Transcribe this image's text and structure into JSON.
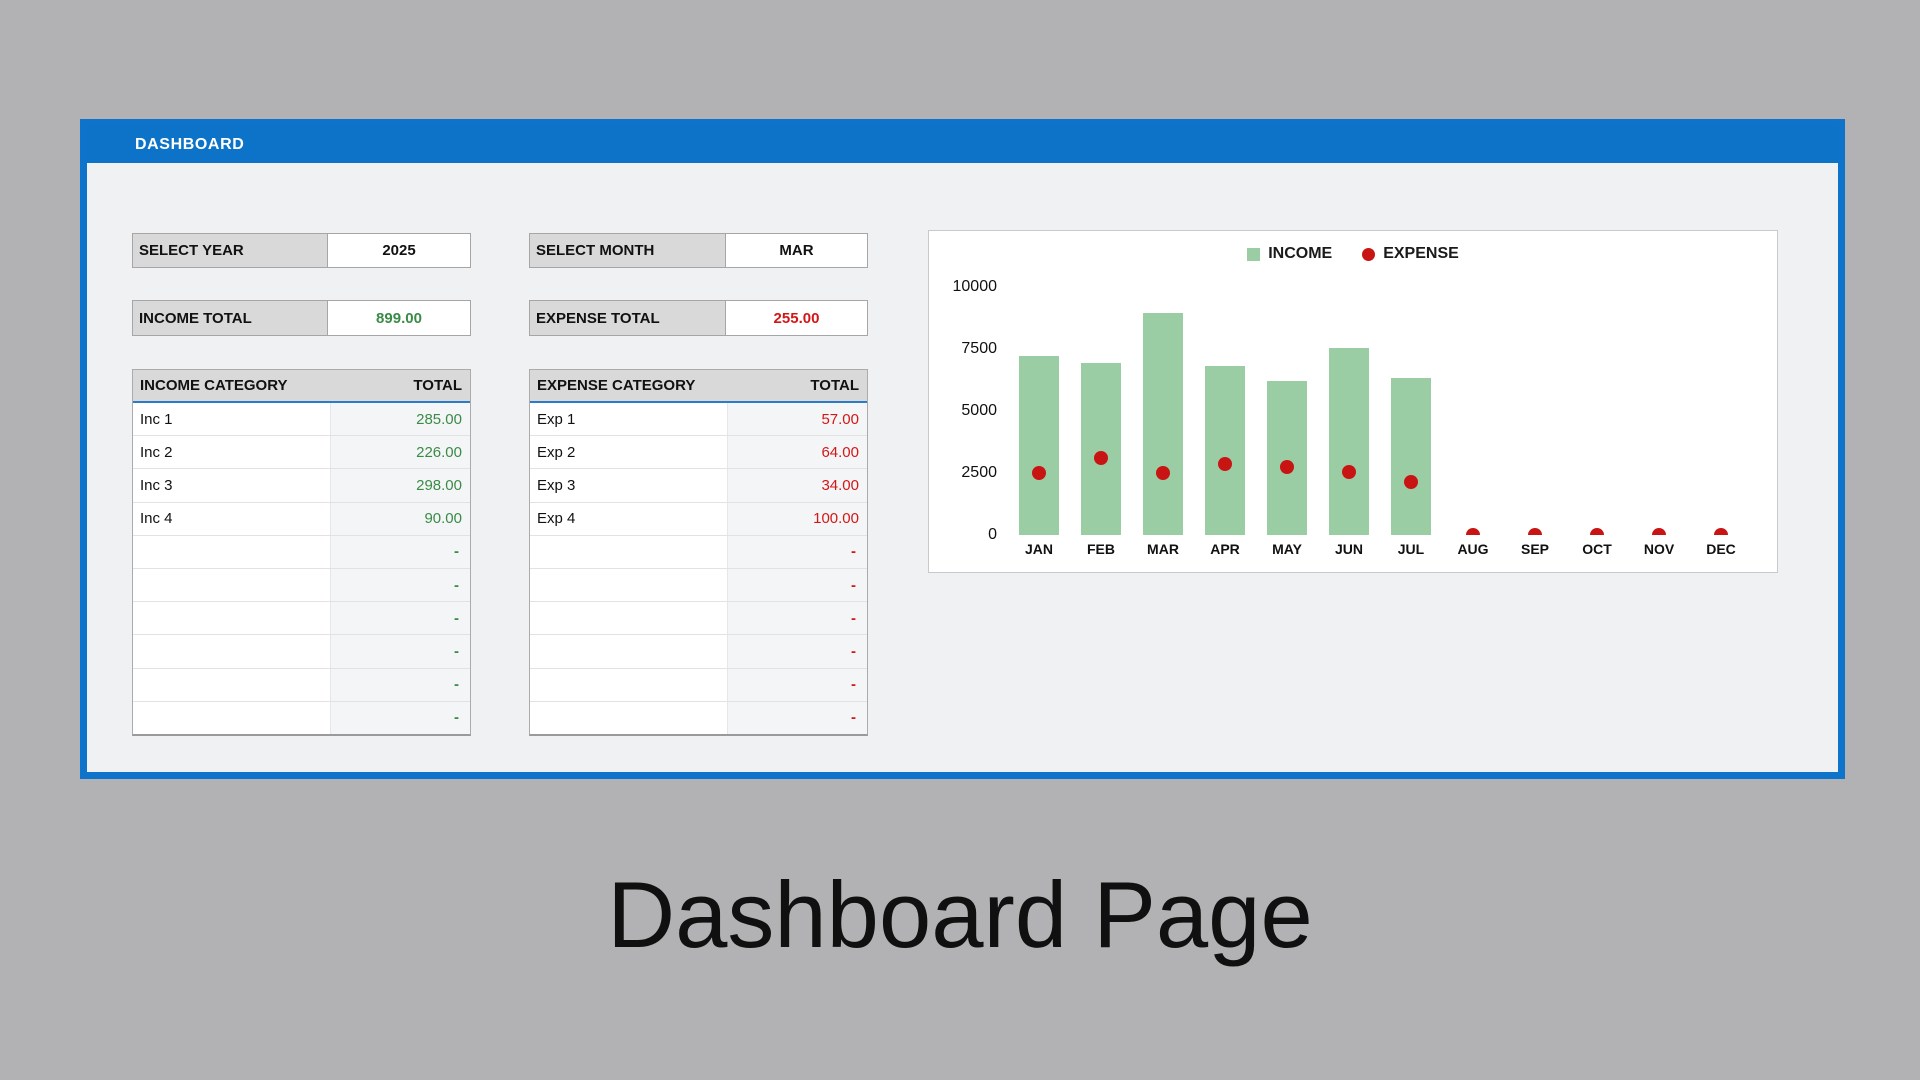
{
  "window": {
    "header_title": "DASHBOARD"
  },
  "filters": {
    "year_label": "SELECT YEAR",
    "year_value": "2025",
    "month_label": "SELECT MONTH",
    "month_value": "MAR"
  },
  "totals": {
    "income_label": "INCOME TOTAL",
    "income_value": "899.00",
    "expense_label": "EXPENSE TOTAL",
    "expense_value": "255.00"
  },
  "income_table": {
    "headers": [
      "INCOME CATEGORY",
      "TOTAL"
    ],
    "rows": [
      [
        "Inc 1",
        "285.00"
      ],
      [
        "Inc 2",
        "226.00"
      ],
      [
        "Inc 3",
        "298.00"
      ],
      [
        "Inc 4",
        "90.00"
      ]
    ],
    "empty_row_count": 6,
    "empty_value": "-"
  },
  "expense_table": {
    "headers": [
      "EXPENSE CATEGORY",
      "TOTAL"
    ],
    "rows": [
      [
        "Exp 1",
        "57.00"
      ],
      [
        "Exp 2",
        "64.00"
      ],
      [
        "Exp 3",
        "34.00"
      ],
      [
        "Exp 4",
        "100.00"
      ]
    ],
    "empty_row_count": 6,
    "empty_value": "-"
  },
  "chart_data": {
    "type": "bar",
    "categories": [
      "JAN",
      "FEB",
      "MAR",
      "APR",
      "MAY",
      "JUN",
      "JUL",
      "AUG",
      "SEP",
      "OCT",
      "NOV",
      "DEC"
    ],
    "series": [
      {
        "name": "INCOME",
        "type": "bar",
        "values": [
          7200,
          6950,
          8950,
          6800,
          6200,
          7550,
          6350,
          0,
          0,
          0,
          0,
          0
        ]
      },
      {
        "name": "EXPENSE",
        "type": "scatter",
        "values": [
          2500,
          3100,
          2500,
          2850,
          2750,
          2550,
          2150,
          0,
          0,
          0,
          0,
          0
        ]
      }
    ],
    "title": "",
    "xlabel": "",
    "ylabel": "",
    "ylim": [
      0,
      10000
    ],
    "y_ticks": [
      10000,
      7500,
      5000,
      2500,
      0
    ],
    "grid": false,
    "legend_position": "top-center"
  },
  "caption": "Dashboard Page",
  "colors": {
    "page_background": "#b2b2b4",
    "panel_border_blue": "#0e74cb",
    "header_blue": "#0d73c8",
    "panel_background": "#f0f1f3",
    "label_cell_gray": "#d9d9d9",
    "income_green_text": "#3b8b46",
    "expense_red_text": "#d31717",
    "bar_green": "#9bcda4",
    "dot_red": "#c91414"
  }
}
